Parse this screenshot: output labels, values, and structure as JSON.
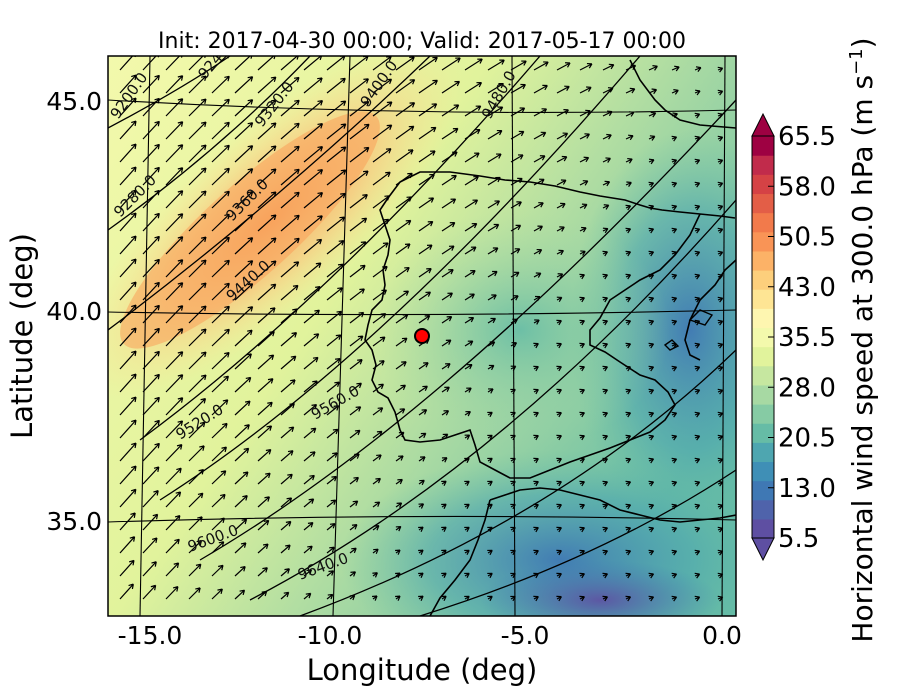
{
  "title": "Init: 2017-04-30 00:00; Valid: 2017-05-17 00:00",
  "xlabel": "Longitude (deg)",
  "ylabel": "Latitude (deg)",
  "x_ticks": [
    "-15.0",
    "-10.0",
    "-5.0",
    "0.0"
  ],
  "y_ticks": [
    "45.0",
    "40.0",
    "35.0"
  ],
  "colorbar": {
    "label": "Horizontal wind speed at 300.0 hPa (m s",
    "label_sup": "−1",
    "label_end": ")",
    "ticks": [
      "65.5",
      "58.0",
      "50.5",
      "43.0",
      "35.5",
      "28.0",
      "20.5",
      "13.0",
      "5.5"
    ],
    "colors": [
      "#5e4fa2",
      "#4f63ab",
      "#3f78b4",
      "#3f8fb6",
      "#4ea6b0",
      "#66bca6",
      "#86cba4",
      "#a7d9a3",
      "#c6e7a0",
      "#e1f39c",
      "#f3f9ac",
      "#fef6b0",
      "#fee594",
      "#fdcf7c",
      "#fcb267",
      "#f99456",
      "#f27a4b",
      "#e35e47",
      "#d54245",
      "#c12b4b",
      "#9e0142"
    ]
  },
  "contour_labels": [
    "9200.0",
    "9240",
    "9320.0",
    "9400.0",
    "9480.0",
    "9280.0",
    "9360.0",
    "9440.0",
    "9520.0",
    "9560.0",
    "9600.0",
    "9640.0"
  ],
  "marker": {
    "color": "#ff0000",
    "lon": -7.7,
    "lat": 39.3
  },
  "chart_data": {
    "type": "heatmap",
    "title": "Init: 2017-04-30 00:00; Valid: 2017-05-17 00:00",
    "xlabel": "Longitude (deg)",
    "ylabel": "Latitude (deg)",
    "xlim": [
      -16,
      0.3
    ],
    "ylim": [
      32.5,
      46.2
    ],
    "colorbar_range": [
      5.5,
      65.5
    ],
    "variable": "Horizontal wind speed at 300.0 hPa (m s-1)",
    "jet_max_region": {
      "lon": -13,
      "lat": 42,
      "speed_approx": 45
    },
    "contours_m": [
      9200,
      9240,
      9280,
      9320,
      9360,
      9400,
      9440,
      9480,
      9520,
      9560,
      9600,
      9640
    ],
    "wind_direction": "southwest to northeast",
    "grid": true
  }
}
